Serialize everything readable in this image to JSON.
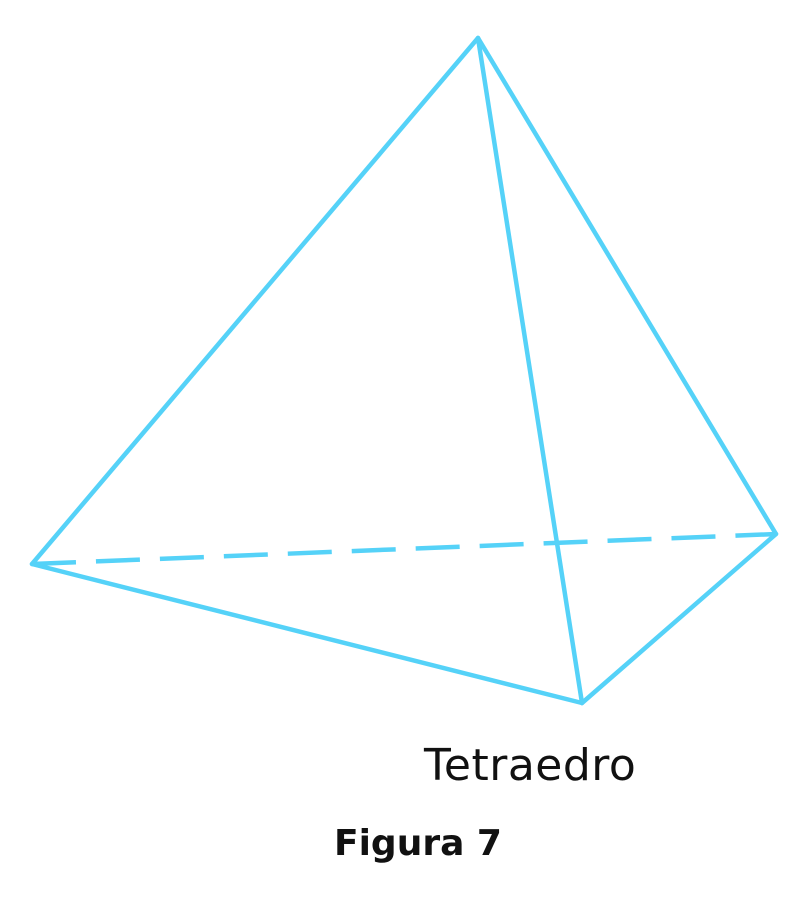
{
  "diagram": {
    "shape_label": "Tetraedro",
    "caption": "Figura 7",
    "vertices": [
      "apex",
      "left",
      "front",
      "right"
    ],
    "edges": [
      {
        "name": "apex-left",
        "from": "apex",
        "to": "left",
        "style": "solid"
      },
      {
        "name": "apex-front",
        "from": "apex",
        "to": "front",
        "style": "solid"
      },
      {
        "name": "apex-right",
        "from": "apex",
        "to": "right",
        "style": "solid"
      },
      {
        "name": "left-front",
        "from": "left",
        "to": "front",
        "style": "solid"
      },
      {
        "name": "front-right",
        "from": "front",
        "to": "right",
        "style": "solid"
      },
      {
        "name": "left-right",
        "from": "left",
        "to": "right",
        "style": "dashed"
      }
    ]
  },
  "colors": {
    "edge": "#55d2f8",
    "text": "#111111",
    "background": "#ffffff"
  }
}
